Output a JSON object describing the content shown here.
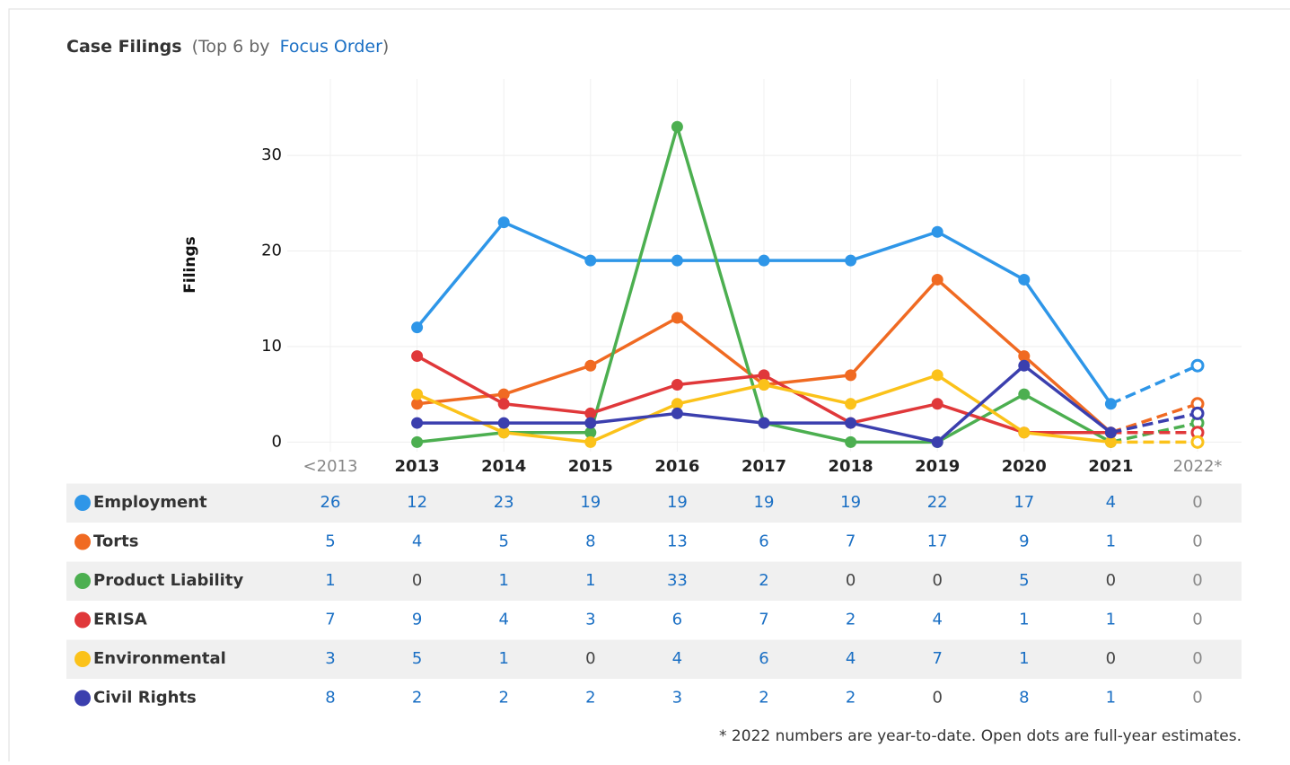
{
  "chart_data": {
    "type": "line",
    "title": "Case Filings",
    "subtitle": {
      "before": "(Top 6 by",
      "link": "Focus Order",
      "after": ")"
    },
    "y_label": "Filings",
    "categories": [
      "<2013",
      "2013",
      "2014",
      "2015",
      "2016",
      "2017",
      "2018",
      "2019",
      "2020",
      "2021",
      "2022*"
    ],
    "ylim": [
      -1,
      38
    ],
    "yticks": [
      0,
      10,
      20,
      30
    ],
    "grid": true,
    "series": [
      {
        "name": "Employment",
        "color": "#2e96e8",
        "values": [
          26,
          12,
          23,
          19,
          19,
          19,
          19,
          22,
          17,
          4,
          0
        ],
        "estimate": 8
      },
      {
        "name": "Torts",
        "color": "#f06a22",
        "values": [
          5,
          4,
          5,
          8,
          13,
          6,
          7,
          17,
          9,
          1,
          0
        ],
        "estimate": 4
      },
      {
        "name": "Product Liability",
        "color": "#4caf50",
        "values": [
          1,
          0,
          1,
          1,
          33,
          2,
          0,
          0,
          5,
          0,
          0
        ],
        "estimate": 2
      },
      {
        "name": "ERISA",
        "color": "#e0383a",
        "values": [
          7,
          9,
          4,
          3,
          6,
          7,
          2,
          4,
          1,
          1,
          0
        ],
        "estimate": 1
      },
      {
        "name": "Environmental",
        "color": "#fbc21a",
        "values": [
          3,
          5,
          1,
          0,
          4,
          6,
          4,
          7,
          1,
          0,
          0
        ],
        "estimate": 0
      },
      {
        "name": "Civil Rights",
        "color": "#3b3fae",
        "values": [
          8,
          2,
          2,
          2,
          3,
          2,
          2,
          0,
          8,
          1,
          0
        ],
        "estimate": 3
      }
    ],
    "footnote": "* 2022 numbers are year-to-date. Open dots are full-year estimates."
  }
}
